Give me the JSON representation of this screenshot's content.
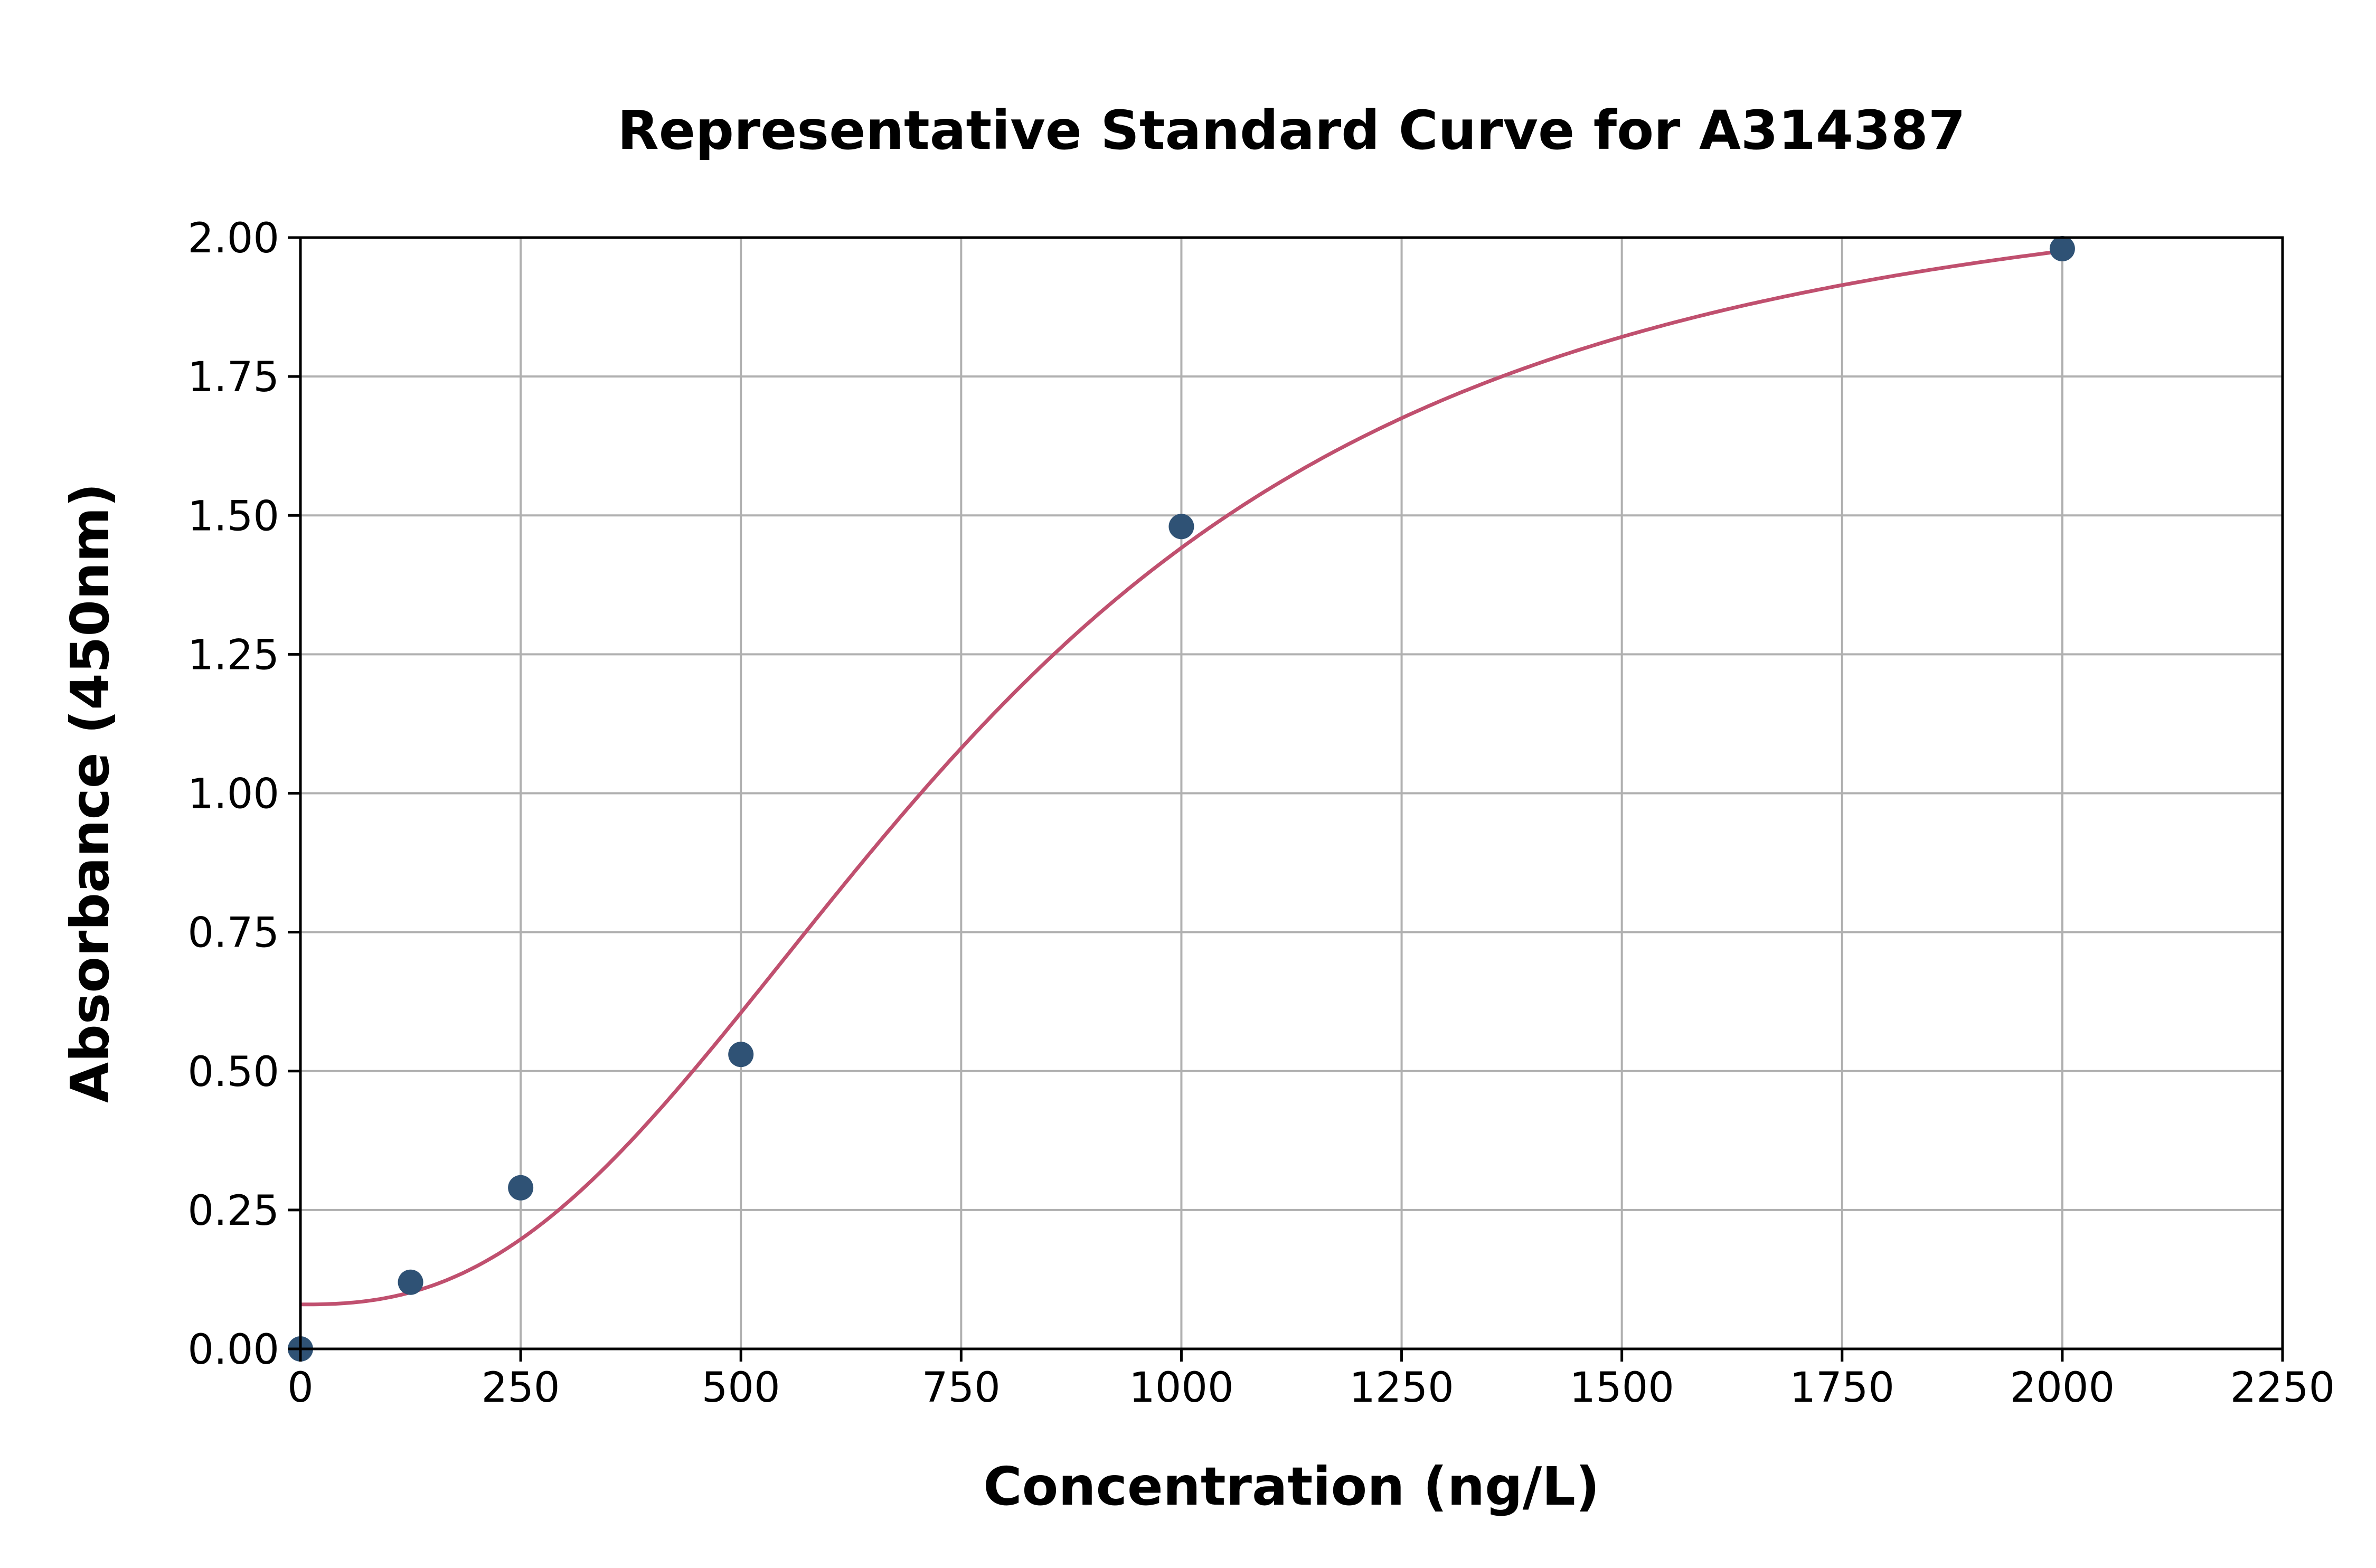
{
  "chart_data": {
    "type": "scatter",
    "title": "Representative Standard Curve for A314387",
    "xlabel": "Concentration (ng/L)",
    "ylabel": "Absorbance (450nm)",
    "xlim": [
      0,
      2250
    ],
    "ylim": [
      0,
      2.0
    ],
    "xticks": [
      "0",
      "250",
      "500",
      "750",
      "1000",
      "1250",
      "1500",
      "1750",
      "2000",
      "2250"
    ],
    "yticks": [
      "0.00",
      "0.25",
      "0.50",
      "0.75",
      "1.00",
      "1.25",
      "1.50",
      "1.75",
      "2.00"
    ],
    "grid": true,
    "points": {
      "x": [
        0,
        125,
        250,
        500,
        1000,
        2000
      ],
      "y": [
        0.0,
        0.12,
        0.29,
        0.53,
        1.48,
        1.98
      ]
    },
    "fit_curve": "four-parameter logistic",
    "colors": {
      "points": "#2f5275",
      "curve": "#c0506f",
      "grid": "#b0b0b0"
    }
  }
}
